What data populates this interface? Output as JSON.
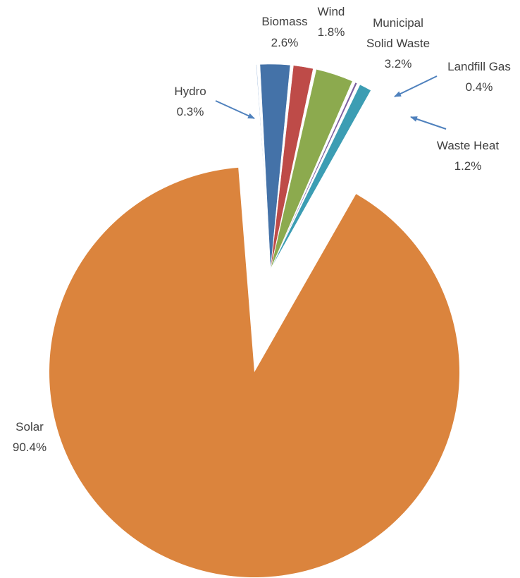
{
  "chart_data": {
    "type": "pie",
    "title": "",
    "legend": "none",
    "exploded": true,
    "slices": [
      {
        "name": "Hydro",
        "label": "Hydro",
        "value_label": "0.3%",
        "value": 0.3,
        "color": "#95B3D7"
      },
      {
        "name": "Biomass",
        "label": "Biomass",
        "value_label": "2.6%",
        "value": 2.6,
        "color": "#4472A8"
      },
      {
        "name": "Wind",
        "label": "Wind",
        "value_label": "1.8%",
        "value": 1.8,
        "color": "#BE4B48"
      },
      {
        "name": "Municipal Solid Waste",
        "label": "Municipal Solid Waste",
        "value_label": "3.2%",
        "value": 3.2,
        "color": "#8CAA4E"
      },
      {
        "name": "Landfill Gas",
        "label": "Landfill Gas",
        "value_label": "0.4%",
        "value": 0.4,
        "color": "#7B5F9E"
      },
      {
        "name": "Waste Heat",
        "label": "Waste Heat",
        "value_label": "1.2%",
        "value": 1.2,
        "color": "#3C9DB3"
      },
      {
        "name": "Solar",
        "label": "Solar",
        "value_label": "90.4%",
        "value": 90.4,
        "color": "#DB843D"
      }
    ],
    "leader_color": "#4F81BD"
  }
}
